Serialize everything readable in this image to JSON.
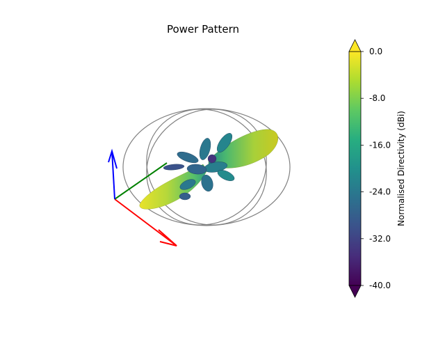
{
  "chart_data": {
    "type": "surface-3d",
    "title": "Power Pattern",
    "colorbar": {
      "label": "Normalised Directivity (dBi)",
      "colormap": "viridis",
      "vmin": -40.0,
      "vmax": 0.0,
      "extend": "both",
      "ticks": [
        0.0,
        -8.0,
        -16.0,
        -24.0,
        -32.0,
        -40.0
      ],
      "tick_labels": [
        "0.0",
        "-8.0",
        "-16.0",
        "-24.0",
        "-32.0",
        "-40.0"
      ]
    },
    "axes_triad": [
      {
        "axis": "x",
        "color": "#ff0000"
      },
      {
        "axis": "y",
        "color": "#008000"
      },
      {
        "axis": "z",
        "color": "#0000ff"
      }
    ],
    "reference_rings": {
      "count": 3,
      "color": "#808080"
    },
    "pattern": {
      "main_lobe_peak_dBi": 0.0,
      "lobes": [
        {
          "name": "main-lobe-front",
          "level_dBi": 0.0
        },
        {
          "name": "main-lobe-back",
          "level_dBi": -2.0
        },
        {
          "name": "side-lobe",
          "level_dBi": -20.0
        },
        {
          "name": "side-lobe",
          "level_dBi": -24.0
        },
        {
          "name": "side-lobe",
          "level_dBi": -28.0
        }
      ]
    }
  }
}
